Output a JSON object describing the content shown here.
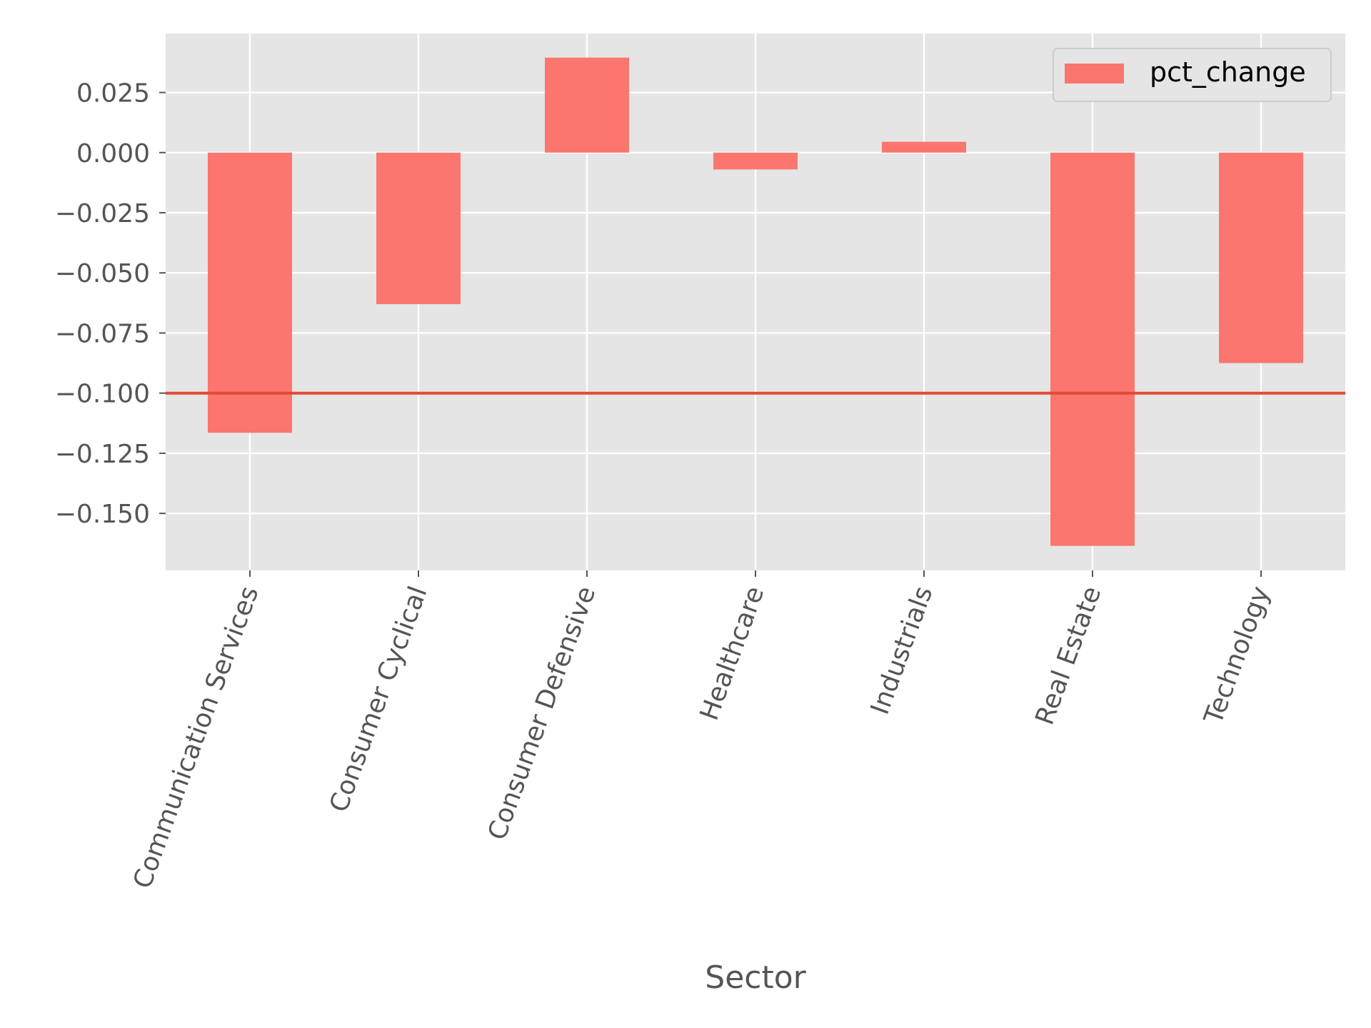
{
  "chart_data": {
    "type": "bar",
    "title": "",
    "xlabel": "Sector",
    "ylabel": "",
    "categories": [
      "Communication Services",
      "Consumer Cyclical",
      "Consumer Defensive",
      "Healthcare",
      "Industrials",
      "Real Estate",
      "Technology"
    ],
    "series": [
      {
        "name": "pct_change",
        "values": [
          -0.1165,
          -0.063,
          0.0395,
          -0.007,
          0.0045,
          -0.1635,
          -0.0875
        ]
      }
    ],
    "ylim": [
      -0.1737,
      0.0495
    ],
    "yticks": [
      0.025,
      0.0,
      -0.025,
      -0.05,
      -0.075,
      -0.1,
      -0.125,
      -0.15
    ],
    "ytick_labels": [
      "0.025",
      "0.000",
      "−0.025",
      "−0.050",
      "−0.075",
      "−0.100",
      "−0.125",
      "−0.150"
    ],
    "reference_line": {
      "y": -0.1
    },
    "grid": true,
    "legend": {
      "position": "top-right",
      "entries": [
        "pct_change"
      ]
    },
    "colors": {
      "bar": "#fa766e",
      "reference_line": "#e24a33",
      "plot_background": "#e5e5e5",
      "grid": "#ffffff",
      "tick_mark": "#555555"
    }
  }
}
